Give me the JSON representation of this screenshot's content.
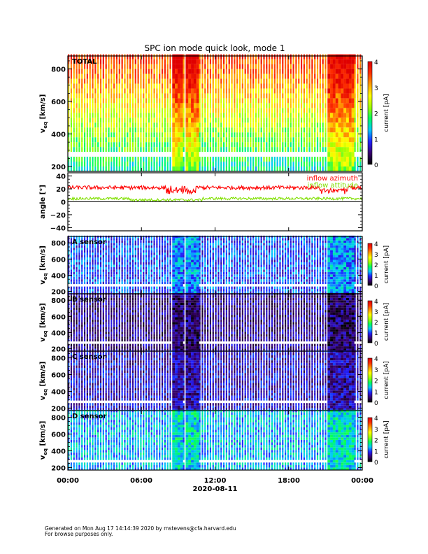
{
  "chart_data": {
    "type": "heatmap",
    "title": "SPC ion mode quick look, mode 1",
    "xlabel": "2020-08-11",
    "x_tick_labels": [
      "00:00",
      "06:00",
      "12:00",
      "18:00",
      "00:00"
    ],
    "x_range_hours": [
      0,
      24
    ],
    "colorbar": {
      "label": "current [pA]",
      "range": [
        0,
        4
      ],
      "tick_labels": [
        "0",
        "1",
        "2",
        "3",
        "4"
      ],
      "colormap": [
        "#000000",
        "#3a0070",
        "#2020ff",
        "#00c8ff",
        "#00ff60",
        "#a0ff00",
        "#ffff00",
        "#ffa000",
        "#ff3000",
        "#e00000"
      ]
    },
    "panels": [
      {
        "id": "total",
        "label": "TOTAL",
        "ylabel_main": "v",
        "ylabel_sub": "eq",
        "ylabel_unit": "[km/s]",
        "y_tick_labels": [
          "200",
          "400",
          "600",
          "800"
        ],
        "y_range": [
          170,
          880
        ],
        "mean_level": 2.6,
        "enhanced_intervals_hours": [
          [
            8.3,
            9.2
          ],
          [
            9.5,
            10.5
          ],
          [
            21.0,
            23.3
          ]
        ]
      },
      {
        "id": "angle",
        "type": "line",
        "ylabel": "angle [°]",
        "y_tick_labels": [
          "-40",
          "-20",
          "0",
          "20",
          "40"
        ],
        "y_range": [
          -45,
          45
        ],
        "series": [
          {
            "name": "inflow azimuth",
            "color": "#ff0000",
            "mean": 22,
            "noise": 3
          },
          {
            "name": "inflow attitude",
            "color": "#80e000",
            "mean": 5,
            "noise": 2
          }
        ]
      },
      {
        "id": "a",
        "label": "A sensor",
        "ylabel_main": "v",
        "ylabel_sub": "eq",
        "ylabel_unit": "[km/s]",
        "y_tick_labels": [
          "200",
          "400",
          "600",
          "800"
        ],
        "y_range": [
          170,
          880
        ],
        "mean_level": 1.0
      },
      {
        "id": "b",
        "label": "B sensor",
        "ylabel_main": "v",
        "ylabel_sub": "eq",
        "ylabel_unit": "[km/s]",
        "y_tick_labels": [
          "200",
          "400",
          "600",
          "800"
        ],
        "y_range": [
          170,
          880
        ],
        "mean_level": 0.5
      },
      {
        "id": "c",
        "label": "C sensor",
        "ylabel_main": "v",
        "ylabel_sub": "eq",
        "ylabel_unit": "[km/s]",
        "y_tick_labels": [
          "200",
          "400",
          "600",
          "800"
        ],
        "y_range": [
          170,
          880
        ],
        "mean_level": 0.7
      },
      {
        "id": "d",
        "label": "D sensor",
        "ylabel_main": "v",
        "ylabel_sub": "eq",
        "ylabel_unit": "[km/s]",
        "y_tick_labels": [
          "200",
          "400",
          "600",
          "800"
        ],
        "y_range": [
          170,
          880
        ],
        "mean_level": 1.3
      }
    ]
  },
  "footer": {
    "line1": "Generated on Mon Aug 17 14:14:39 2020 by mstevens@cfa.harvard.edu",
    "line2": "For browse purposes only."
  }
}
